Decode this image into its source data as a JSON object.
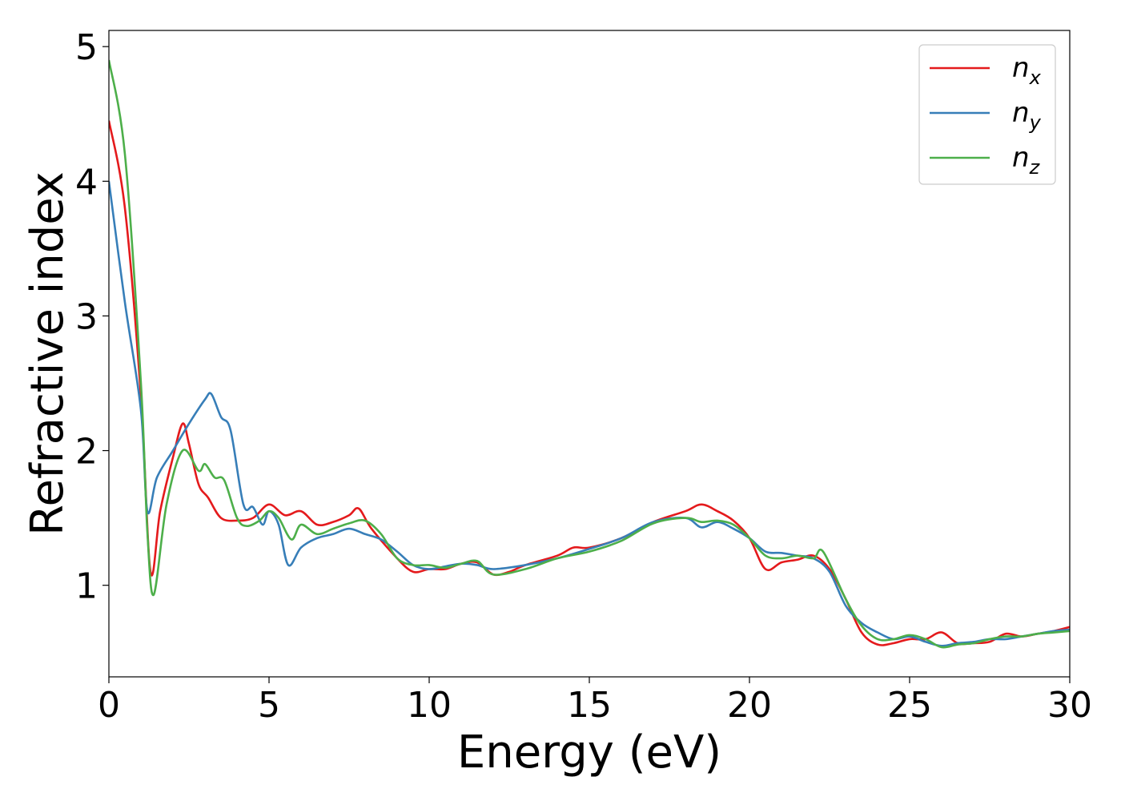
{
  "chart_data": {
    "type": "line",
    "xlabel": "Energy (eV)",
    "ylabel": "Refractive index",
    "xlim": [
      0,
      30
    ],
    "ylim": [
      0.32,
      5.12
    ],
    "xticks": [
      "0",
      "5",
      "10",
      "15",
      "20",
      "25",
      "30"
    ],
    "yticks": [
      "1",
      "2",
      "3",
      "4",
      "5"
    ],
    "grid": false,
    "legend_position": "top-right",
    "series": [
      {
        "name": "n_x",
        "label_base": "n",
        "label_sub": "x",
        "color": "#e41a1c",
        "x": [
          0,
          0.5,
          1.0,
          1.3,
          1.6,
          2.0,
          2.3,
          2.5,
          2.8,
          3.1,
          3.5,
          4.0,
          4.5,
          5.0,
          5.5,
          6.0,
          6.5,
          7.0,
          7.5,
          7.8,
          8.2,
          9.0,
          9.5,
          10.0,
          10.5,
          11.0,
          11.5,
          12.0,
          12.5,
          13.0,
          14.0,
          14.5,
          15.0,
          16.0,
          17.0,
          18.0,
          18.5,
          19.0,
          19.5,
          20.0,
          20.5,
          21.0,
          21.5,
          22.0,
          22.5,
          23.0,
          23.5,
          24.0,
          24.5,
          25.0,
          25.5,
          26.0,
          26.5,
          27.0,
          27.5,
          28.0,
          28.5,
          29.0,
          29.5,
          30.0
        ],
        "y": [
          4.45,
          3.8,
          2.4,
          1.1,
          1.55,
          1.95,
          2.2,
          2.05,
          1.75,
          1.65,
          1.5,
          1.48,
          1.5,
          1.6,
          1.52,
          1.55,
          1.45,
          1.47,
          1.52,
          1.57,
          1.42,
          1.2,
          1.1,
          1.12,
          1.12,
          1.16,
          1.17,
          1.08,
          1.1,
          1.15,
          1.22,
          1.28,
          1.28,
          1.35,
          1.47,
          1.55,
          1.6,
          1.55,
          1.48,
          1.35,
          1.12,
          1.17,
          1.19,
          1.22,
          1.12,
          0.9,
          0.65,
          0.56,
          0.57,
          0.6,
          0.6,
          0.65,
          0.57,
          0.57,
          0.58,
          0.64,
          0.62,
          0.64,
          0.66,
          0.69
        ]
      },
      {
        "name": "n_y",
        "label_base": "n",
        "label_sub": "y",
        "color": "#377eb8",
        "x": [
          0,
          0.5,
          1.0,
          1.2,
          1.5,
          2.0,
          2.5,
          3.0,
          3.2,
          3.5,
          3.8,
          4.2,
          4.5,
          4.8,
          5.0,
          5.3,
          5.6,
          6.0,
          6.5,
          7.0,
          7.5,
          8.0,
          8.5,
          9.0,
          9.5,
          10.0,
          10.5,
          11.0,
          11.5,
          12.0,
          13.0,
          14.0,
          15.0,
          16.0,
          17.0,
          18.0,
          18.5,
          19.0,
          19.5,
          20.0,
          20.5,
          21.0,
          21.5,
          22.0,
          22.5,
          23.0,
          23.5,
          24.0,
          24.5,
          25.0,
          25.5,
          26.0,
          26.5,
          27.0,
          27.5,
          28.0,
          28.5,
          29.0,
          29.5,
          30.0
        ],
        "y": [
          4.0,
          3.1,
          2.3,
          1.55,
          1.8,
          2.0,
          2.2,
          2.38,
          2.42,
          2.25,
          2.15,
          1.6,
          1.58,
          1.45,
          1.55,
          1.45,
          1.15,
          1.28,
          1.35,
          1.38,
          1.42,
          1.38,
          1.34,
          1.25,
          1.15,
          1.12,
          1.14,
          1.16,
          1.15,
          1.12,
          1.15,
          1.2,
          1.27,
          1.35,
          1.47,
          1.5,
          1.43,
          1.47,
          1.42,
          1.35,
          1.25,
          1.24,
          1.22,
          1.2,
          1.1,
          0.85,
          0.72,
          0.65,
          0.6,
          0.62,
          0.58,
          0.55,
          0.57,
          0.58,
          0.6,
          0.6,
          0.62,
          0.64,
          0.66,
          0.67
        ]
      },
      {
        "name": "n_z",
        "label_base": "n",
        "label_sub": "z",
        "color": "#4daf4a",
        "x": [
          0,
          0.5,
          1.0,
          1.2,
          1.4,
          1.8,
          2.3,
          2.8,
          3.0,
          3.3,
          3.6,
          4.0,
          4.3,
          4.7,
          5.0,
          5.3,
          5.7,
          6.0,
          6.5,
          7.0,
          7.5,
          8.0,
          8.5,
          9.0,
          9.5,
          10.0,
          10.5,
          11.0,
          11.5,
          12.0,
          13.0,
          14.0,
          15.0,
          16.0,
          17.0,
          18.0,
          18.5,
          19.0,
          19.5,
          20.0,
          20.5,
          21.0,
          21.5,
          22.0,
          22.3,
          23.0,
          23.5,
          24.0,
          24.5,
          25.0,
          25.5,
          26.0,
          26.5,
          27.0,
          27.5,
          28.0,
          28.5,
          29.0,
          29.5,
          30.0
        ],
        "y": [
          4.9,
          4.2,
          2.5,
          1.4,
          0.93,
          1.6,
          2.0,
          1.85,
          1.9,
          1.8,
          1.78,
          1.5,
          1.44,
          1.48,
          1.55,
          1.5,
          1.34,
          1.45,
          1.38,
          1.42,
          1.46,
          1.48,
          1.38,
          1.2,
          1.15,
          1.15,
          1.13,
          1.16,
          1.18,
          1.08,
          1.12,
          1.2,
          1.25,
          1.33,
          1.46,
          1.5,
          1.47,
          1.48,
          1.45,
          1.35,
          1.22,
          1.2,
          1.22,
          1.2,
          1.25,
          0.9,
          0.7,
          0.6,
          0.6,
          0.63,
          0.6,
          0.54,
          0.56,
          0.57,
          0.6,
          0.62,
          0.62,
          0.64,
          0.65,
          0.66
        ]
      }
    ]
  }
}
